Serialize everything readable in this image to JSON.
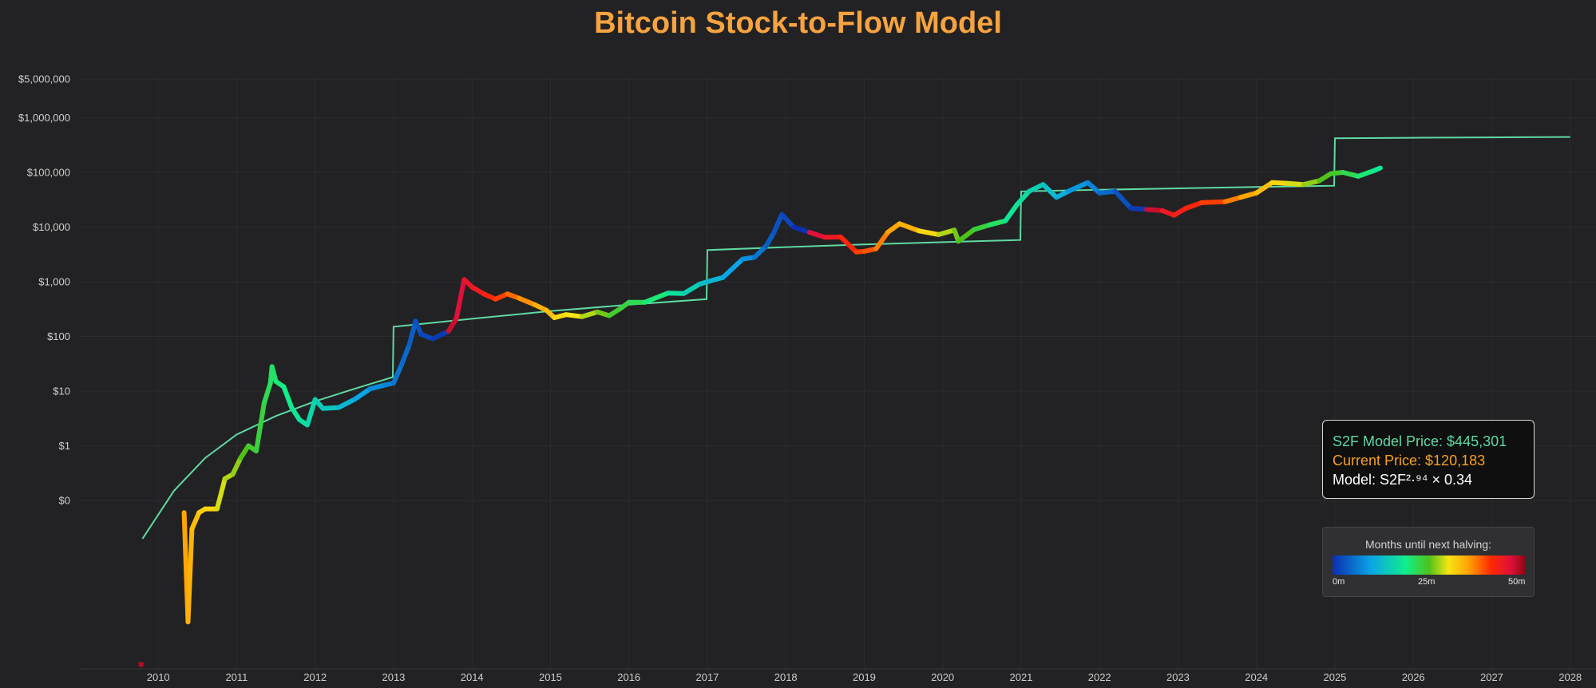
{
  "chart_data": {
    "type": "line",
    "title": "Bitcoin Stock-to-Flow Model",
    "y_scale": "log",
    "y_ticks": [
      "$0",
      "$1",
      "$10",
      "$100",
      "$1,000",
      "$10,000",
      "$100,000",
      "$1,000,000",
      "$5,000,000"
    ],
    "x_ticks": [
      "2010",
      "2011",
      "2012",
      "2013",
      "2014",
      "2015",
      "2016",
      "2017",
      "2018",
      "2019",
      "2020",
      "2021",
      "2022",
      "2023",
      "2024",
      "2025",
      "2026",
      "2027",
      "2028"
    ],
    "xlim": [
      2009.0,
      2028.0
    ],
    "grid": true,
    "series": [
      {
        "kind": "model",
        "color": "#5fd9a2",
        "points": [
          [
            2009.8,
            0.02
          ],
          [
            2010.2,
            0.15
          ],
          [
            2010.6,
            0.6
          ],
          [
            2011.0,
            1.6
          ],
          [
            2011.5,
            3.5
          ],
          [
            2012.0,
            6.5
          ],
          [
            2012.5,
            11
          ],
          [
            2012.99,
            18
          ],
          [
            2013.0,
            150
          ],
          [
            2014.0,
            210
          ],
          [
            2015.0,
            290
          ],
          [
            2016.0,
            380
          ],
          [
            2016.99,
            480
          ],
          [
            2017.0,
            3800
          ],
          [
            2018.0,
            4300
          ],
          [
            2019.0,
            4800
          ],
          [
            2020.0,
            5300
          ],
          [
            2020.99,
            5800
          ],
          [
            2021.0,
            45000
          ],
          [
            2022.0,
            48000
          ],
          [
            2023.0,
            51000
          ],
          [
            2024.0,
            54000
          ],
          [
            2024.99,
            57000
          ],
          [
            2025.0,
            420000
          ],
          [
            2026.0,
            430000
          ],
          [
            2027.0,
            438000
          ],
          [
            2028.0,
            445301
          ]
        ]
      },
      {
        "kind": "price",
        "color_scale": "months until next halving",
        "points": [
          [
            2009.78,
            0.0001,
            48
          ],
          [
            2010.33,
            0.06,
            35
          ],
          [
            2010.38,
            0.0006,
            34
          ],
          [
            2010.43,
            0.03,
            33
          ],
          [
            2010.52,
            0.06,
            32
          ],
          [
            2010.6,
            0.07,
            31
          ],
          [
            2010.75,
            0.07,
            29
          ],
          [
            2010.85,
            0.25,
            28
          ],
          [
            2010.95,
            0.3,
            27
          ],
          [
            2011.05,
            0.6,
            25
          ],
          [
            2011.15,
            1.0,
            24
          ],
          [
            2011.25,
            0.8,
            23
          ],
          [
            2011.35,
            6,
            22
          ],
          [
            2011.43,
            14,
            21
          ],
          [
            2011.45,
            28,
            21
          ],
          [
            2011.5,
            15,
            20
          ],
          [
            2011.6,
            12,
            19
          ],
          [
            2011.7,
            5,
            18
          ],
          [
            2011.8,
            3,
            17
          ],
          [
            2011.9,
            2.4,
            16
          ],
          [
            2012.0,
            7,
            15
          ],
          [
            2012.1,
            4.8,
            14
          ],
          [
            2012.3,
            5,
            12
          ],
          [
            2012.5,
            7,
            10
          ],
          [
            2012.7,
            11,
            8
          ],
          [
            2012.9,
            13,
            7
          ],
          [
            2013.0,
            14,
            6
          ],
          [
            2013.1,
            30,
            5
          ],
          [
            2013.2,
            70,
            4
          ],
          [
            2013.28,
            190,
            3
          ],
          [
            2013.35,
            110,
            2
          ],
          [
            2013.5,
            90,
            1
          ],
          [
            2013.7,
            125,
            47
          ],
          [
            2013.8,
            210,
            46
          ],
          [
            2013.9,
            1100,
            45
          ],
          [
            2014.0,
            800,
            44
          ],
          [
            2014.15,
            600,
            42
          ],
          [
            2014.3,
            480,
            40
          ],
          [
            2014.45,
            600,
            38
          ],
          [
            2014.6,
            500,
            36
          ],
          [
            2014.8,
            380,
            34
          ],
          [
            2014.95,
            300,
            33
          ],
          [
            2015.05,
            220,
            31
          ],
          [
            2015.2,
            250,
            30
          ],
          [
            2015.4,
            230,
            28
          ],
          [
            2015.6,
            280,
            26
          ],
          [
            2015.75,
            240,
            24
          ],
          [
            2015.9,
            330,
            23
          ],
          [
            2016.0,
            420,
            22
          ],
          [
            2016.2,
            420,
            20
          ],
          [
            2016.5,
            620,
            17
          ],
          [
            2016.7,
            610,
            15
          ],
          [
            2016.9,
            900,
            13
          ],
          [
            2017.0,
            1000,
            12
          ],
          [
            2017.2,
            1200,
            10
          ],
          [
            2017.45,
            2600,
            8
          ],
          [
            2017.6,
            2800,
            6
          ],
          [
            2017.75,
            4500,
            4
          ],
          [
            2017.85,
            8000,
            3
          ],
          [
            2017.95,
            17000,
            2
          ],
          [
            2018.1,
            10000,
            0
          ],
          [
            2018.3,
            8000,
            46
          ],
          [
            2018.5,
            6500,
            44
          ],
          [
            2018.7,
            6600,
            42
          ],
          [
            2018.9,
            3500,
            40
          ],
          [
            2019.0,
            3600,
            39
          ],
          [
            2019.15,
            4000,
            37
          ],
          [
            2019.3,
            8000,
            35
          ],
          [
            2019.45,
            11500,
            34
          ],
          [
            2019.7,
            8500,
            31
          ],
          [
            2019.95,
            7300,
            28
          ],
          [
            2020.15,
            8800,
            26
          ],
          [
            2020.2,
            5500,
            25
          ],
          [
            2020.4,
            9000,
            23
          ],
          [
            2020.6,
            11000,
            21
          ],
          [
            2020.8,
            13000,
            18
          ],
          [
            2020.95,
            26000,
            17
          ],
          [
            2021.1,
            45000,
            15
          ],
          [
            2021.28,
            60000,
            13
          ],
          [
            2021.45,
            35000,
            11
          ],
          [
            2021.6,
            45000,
            9
          ],
          [
            2021.85,
            65000,
            7
          ],
          [
            2022.0,
            42000,
            5
          ],
          [
            2022.2,
            45000,
            3
          ],
          [
            2022.4,
            22000,
            1
          ],
          [
            2022.6,
            21000,
            47
          ],
          [
            2022.8,
            20000,
            44
          ],
          [
            2022.95,
            16500,
            43
          ],
          [
            2023.1,
            22000,
            42
          ],
          [
            2023.3,
            28000,
            40
          ],
          [
            2023.6,
            29000,
            37
          ],
          [
            2023.8,
            35000,
            35
          ],
          [
            2024.0,
            42000,
            33
          ],
          [
            2024.2,
            65000,
            31
          ],
          [
            2024.4,
            63000,
            29
          ],
          [
            2024.6,
            60000,
            27
          ],
          [
            2024.8,
            70000,
            25
          ],
          [
            2024.95,
            95000,
            24
          ],
          [
            2025.1,
            100000,
            22
          ],
          [
            2025.3,
            85000,
            20
          ],
          [
            2025.5,
            108000,
            18
          ],
          [
            2025.58,
            120183,
            17
          ]
        ]
      }
    ],
    "info_box": {
      "model_price": "S2F Model Price: $445,301",
      "current_price": "Current Price: $120,183",
      "formula": "Model: S2F²·⁹⁴ × 0.34"
    },
    "color_legend": {
      "title": "Months until next halving:",
      "ticks": [
        "0m",
        "25m",
        "50m"
      ]
    }
  }
}
